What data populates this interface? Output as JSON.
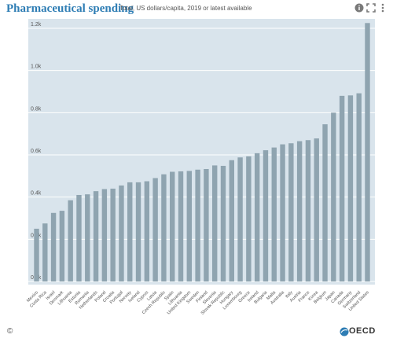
{
  "header": {
    "title": "Pharmaceutical spending",
    "subtitle": "Total, US dollars/capita, 2019 or latest available",
    "icons": [
      "info-icon",
      "share-icon",
      "expand-icon",
      "more-icon"
    ]
  },
  "footer": {
    "copyright": "©",
    "logo_text": "OECD"
  },
  "colors": {
    "plot_bg": "#d9e4ec",
    "bar": "#8fa4b0",
    "title": "#2e7db4"
  },
  "chart_data": {
    "type": "bar",
    "title": "Pharmaceutical spending",
    "subtitle": "Total, US dollars/capita, 2019 or latest available",
    "categories": [
      "Mexico",
      "Costa Rica",
      "Israel",
      "Denmark",
      "Lithuania",
      "Estonia",
      "Romania",
      "Netherlands",
      "Poland",
      "Croatia",
      "Portugal",
      "Norway",
      "Iceland",
      "Cyprus",
      "Latvia",
      "Czech Republic",
      "Spain",
      "Lithuania",
      "United Kingdom",
      "Sweden",
      "Finland",
      "Slovenia",
      "Slovak Republic",
      "Hungary",
      "Luxembourg",
      "Greece",
      "Ireland",
      "Bulgaria",
      "Malta",
      "Australia",
      "Italy",
      "Austria",
      "France",
      "Korea",
      "Belgium",
      "Japan",
      "Canada",
      "Germany",
      "Switzerland",
      "United States"
    ],
    "values": [
      250,
      275,
      325,
      335,
      385,
      410,
      413,
      428,
      438,
      440,
      455,
      470,
      470,
      475,
      490,
      508,
      520,
      522,
      524,
      530,
      533,
      550,
      548,
      575,
      588,
      593,
      608,
      622,
      635,
      650,
      655,
      665,
      670,
      678,
      745,
      800,
      880,
      882,
      892,
      1225
    ],
    "ylim": [
      0,
      1250
    ],
    "yticks": [
      0,
      200,
      400,
      600,
      800,
      1000,
      1200
    ],
    "ytick_labels": [
      "0.0k",
      "0.2k",
      "0.4k",
      "0.6k",
      "0.8k",
      "1.0k",
      "1.2k"
    ],
    "xlabel": "",
    "ylabel": "",
    "grid": true
  }
}
